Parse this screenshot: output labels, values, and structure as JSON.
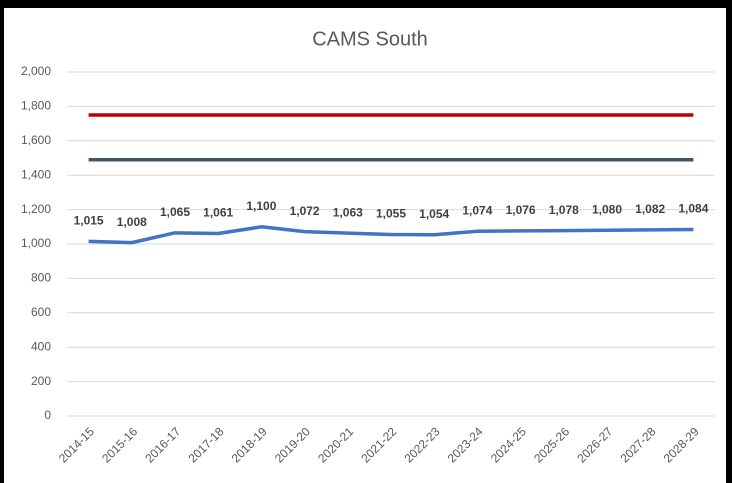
{
  "chart_data": {
    "type": "line",
    "title": "CAMS South",
    "categories": [
      "2014-15",
      "2015-16",
      "2016-17",
      "2017-18",
      "2018-19",
      "2019-20",
      "2020-21",
      "2021-22",
      "2022-23",
      "2023-24",
      "2024-25",
      "2025-26",
      "2026-27",
      "2027-28",
      "2028-29"
    ],
    "series": [
      {
        "color": "#c00000",
        "values": [
          1750,
          1750,
          1750,
          1750,
          1750,
          1750,
          1750,
          1750,
          1750,
          1750,
          1750,
          1750,
          1750,
          1750,
          1750
        ]
      },
      {
        "color": "#44546a",
        "values": [
          1490,
          1490,
          1490,
          1490,
          1490,
          1490,
          1490,
          1490,
          1490,
          1490,
          1490,
          1490,
          1490,
          1490,
          1490
        ]
      },
      {
        "color": "#4472c4",
        "values": [
          1015,
          1008,
          1065,
          1061,
          1100,
          1072,
          1063,
          1055,
          1054,
          1074,
          1076,
          1078,
          1080,
          1082,
          1084
        ],
        "value_labels": [
          "1,015",
          "1,008",
          "1,065",
          "1,061",
          "1,100",
          "1,072",
          "1,063",
          "1,055",
          "1,054",
          "1,074",
          "1,076",
          "1,078",
          "1,080",
          "1,082",
          "1,084"
        ]
      }
    ],
    "ylim": [
      0,
      2000
    ],
    "yticks": [
      0,
      200,
      400,
      600,
      800,
      {
        "value": 1000,
        "label": "1,000"
      },
      {
        "value": 1200,
        "label": "1,200"
      },
      {
        "value": 1400,
        "label": "1,400"
      },
      {
        "value": 1600,
        "label": "1,600"
      },
      {
        "value": 1800,
        "label": "1,800"
      },
      {
        "value": 2000,
        "label": "2,000"
      }
    ],
    "grid": true
  }
}
